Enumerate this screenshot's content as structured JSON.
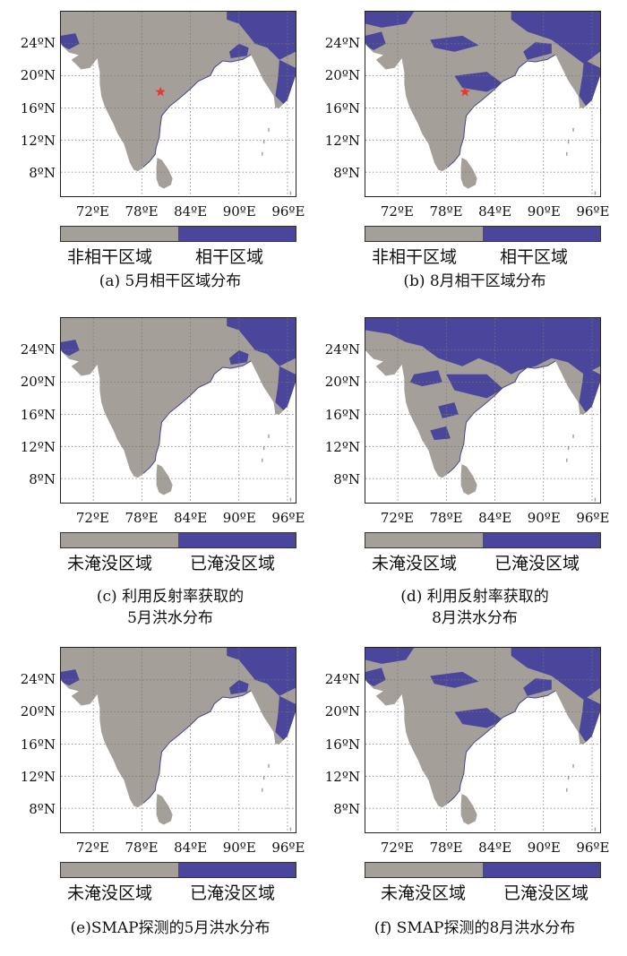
{
  "colors": {
    "land": "#a59f9a",
    "water_flood": "#4a469b",
    "sea": "#ffffff",
    "grid": "#777777",
    "station": "#e63a2f"
  },
  "map_axes": {
    "lat_ticks": [
      "24ºN",
      "20ºN",
      "16ºN",
      "12ºN",
      "8ºN"
    ],
    "lon_ticks": [
      "72ºE",
      "78ºE",
      "84ºE",
      "90ºE",
      "96ºE"
    ],
    "lat_values": [
      24,
      20,
      16,
      12,
      8
    ],
    "lon_values": [
      72,
      78,
      84,
      90,
      96
    ]
  },
  "panels": [
    {
      "id": "a",
      "legend_left": "非相干区域",
      "legend_right": "相干区域",
      "caption_line1": "(a) 5月相干区域分布",
      "caption_line2": "",
      "has_station": true,
      "flood_level": "low"
    },
    {
      "id": "b",
      "legend_left": "非相干区域",
      "legend_right": "相干区域",
      "caption_line1": "(b) 8月相干区域分布",
      "caption_line2": "",
      "has_station": true,
      "flood_level": "medium"
    },
    {
      "id": "c",
      "legend_left": "未淹没区域",
      "legend_right": "已淹没区域",
      "caption_line1": "(c) 利用反射率获取的",
      "caption_line2": "5月洪水分布",
      "has_station": false,
      "flood_level": "low"
    },
    {
      "id": "d",
      "legend_left": "未淹没区域",
      "legend_right": "已淹没区域",
      "caption_line1": "(d) 利用反射率获取的",
      "caption_line2": "8月洪水分布",
      "has_station": false,
      "flood_level": "high"
    },
    {
      "id": "e",
      "legend_left": "未淹没区域",
      "legend_right": "已淹没区域",
      "caption_line1": "(e)SMAP探测的5月洪水分布",
      "caption_line2": "",
      "has_station": false,
      "flood_level": "low"
    },
    {
      "id": "f",
      "legend_left": "未淹没区域",
      "legend_right": "已淹没区域",
      "caption_line1": "(f) SMAP探测的8月洪水分布",
      "caption_line2": "",
      "has_station": false,
      "flood_level": "medium"
    }
  ]
}
